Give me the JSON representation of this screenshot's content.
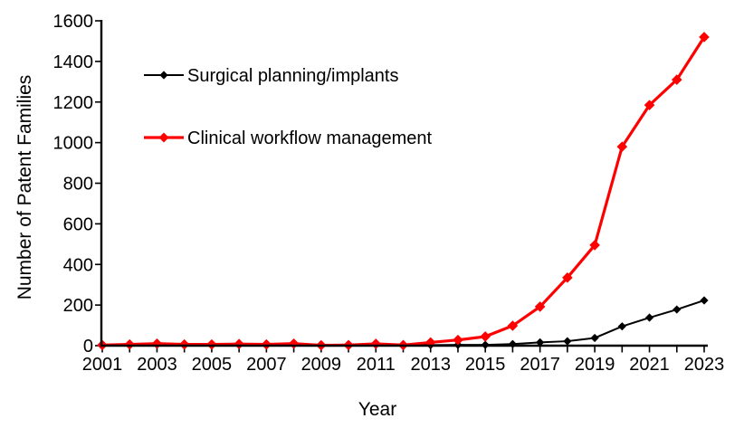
{
  "chart_data": {
    "type": "line",
    "title": "",
    "xlabel": "Year",
    "ylabel": "Number of Patent Families",
    "x": [
      2001,
      2002,
      2003,
      2004,
      2005,
      2006,
      2007,
      2008,
      2009,
      2010,
      2011,
      2012,
      2013,
      2014,
      2015,
      2016,
      2017,
      2018,
      2019,
      2020,
      2021,
      2022,
      2023
    ],
    "x_tick_labels": [
      2001,
      2003,
      2005,
      2007,
      2009,
      2011,
      2013,
      2015,
      2017,
      2019,
      2021,
      2023
    ],
    "y_ticks": [
      0,
      200,
      400,
      600,
      800,
      1000,
      1200,
      1400,
      1600
    ],
    "ylim": [
      0,
      1600
    ],
    "grid": false,
    "legend_position": "upper-left-inside",
    "series": [
      {
        "name": "Surgical planning/implants",
        "color": "#000000",
        "marker": "diamond",
        "values": [
          1,
          4,
          9,
          5,
          5,
          7,
          5,
          10,
          1,
          1,
          6,
          2,
          3,
          4,
          4,
          8,
          16,
          22,
          38,
          95,
          138,
          178,
          223
        ]
      },
      {
        "name": "Clinical workflow management",
        "color": "#ff0000",
        "marker": "diamond",
        "values": [
          3,
          6,
          10,
          6,
          6,
          8,
          6,
          10,
          2,
          3,
          9,
          3,
          16,
          28,
          45,
          98,
          192,
          335,
          495,
          980,
          1185,
          1310,
          1520
        ]
      }
    ]
  },
  "colors": {
    "background": "#ffffff",
    "axis": "#000000"
  }
}
